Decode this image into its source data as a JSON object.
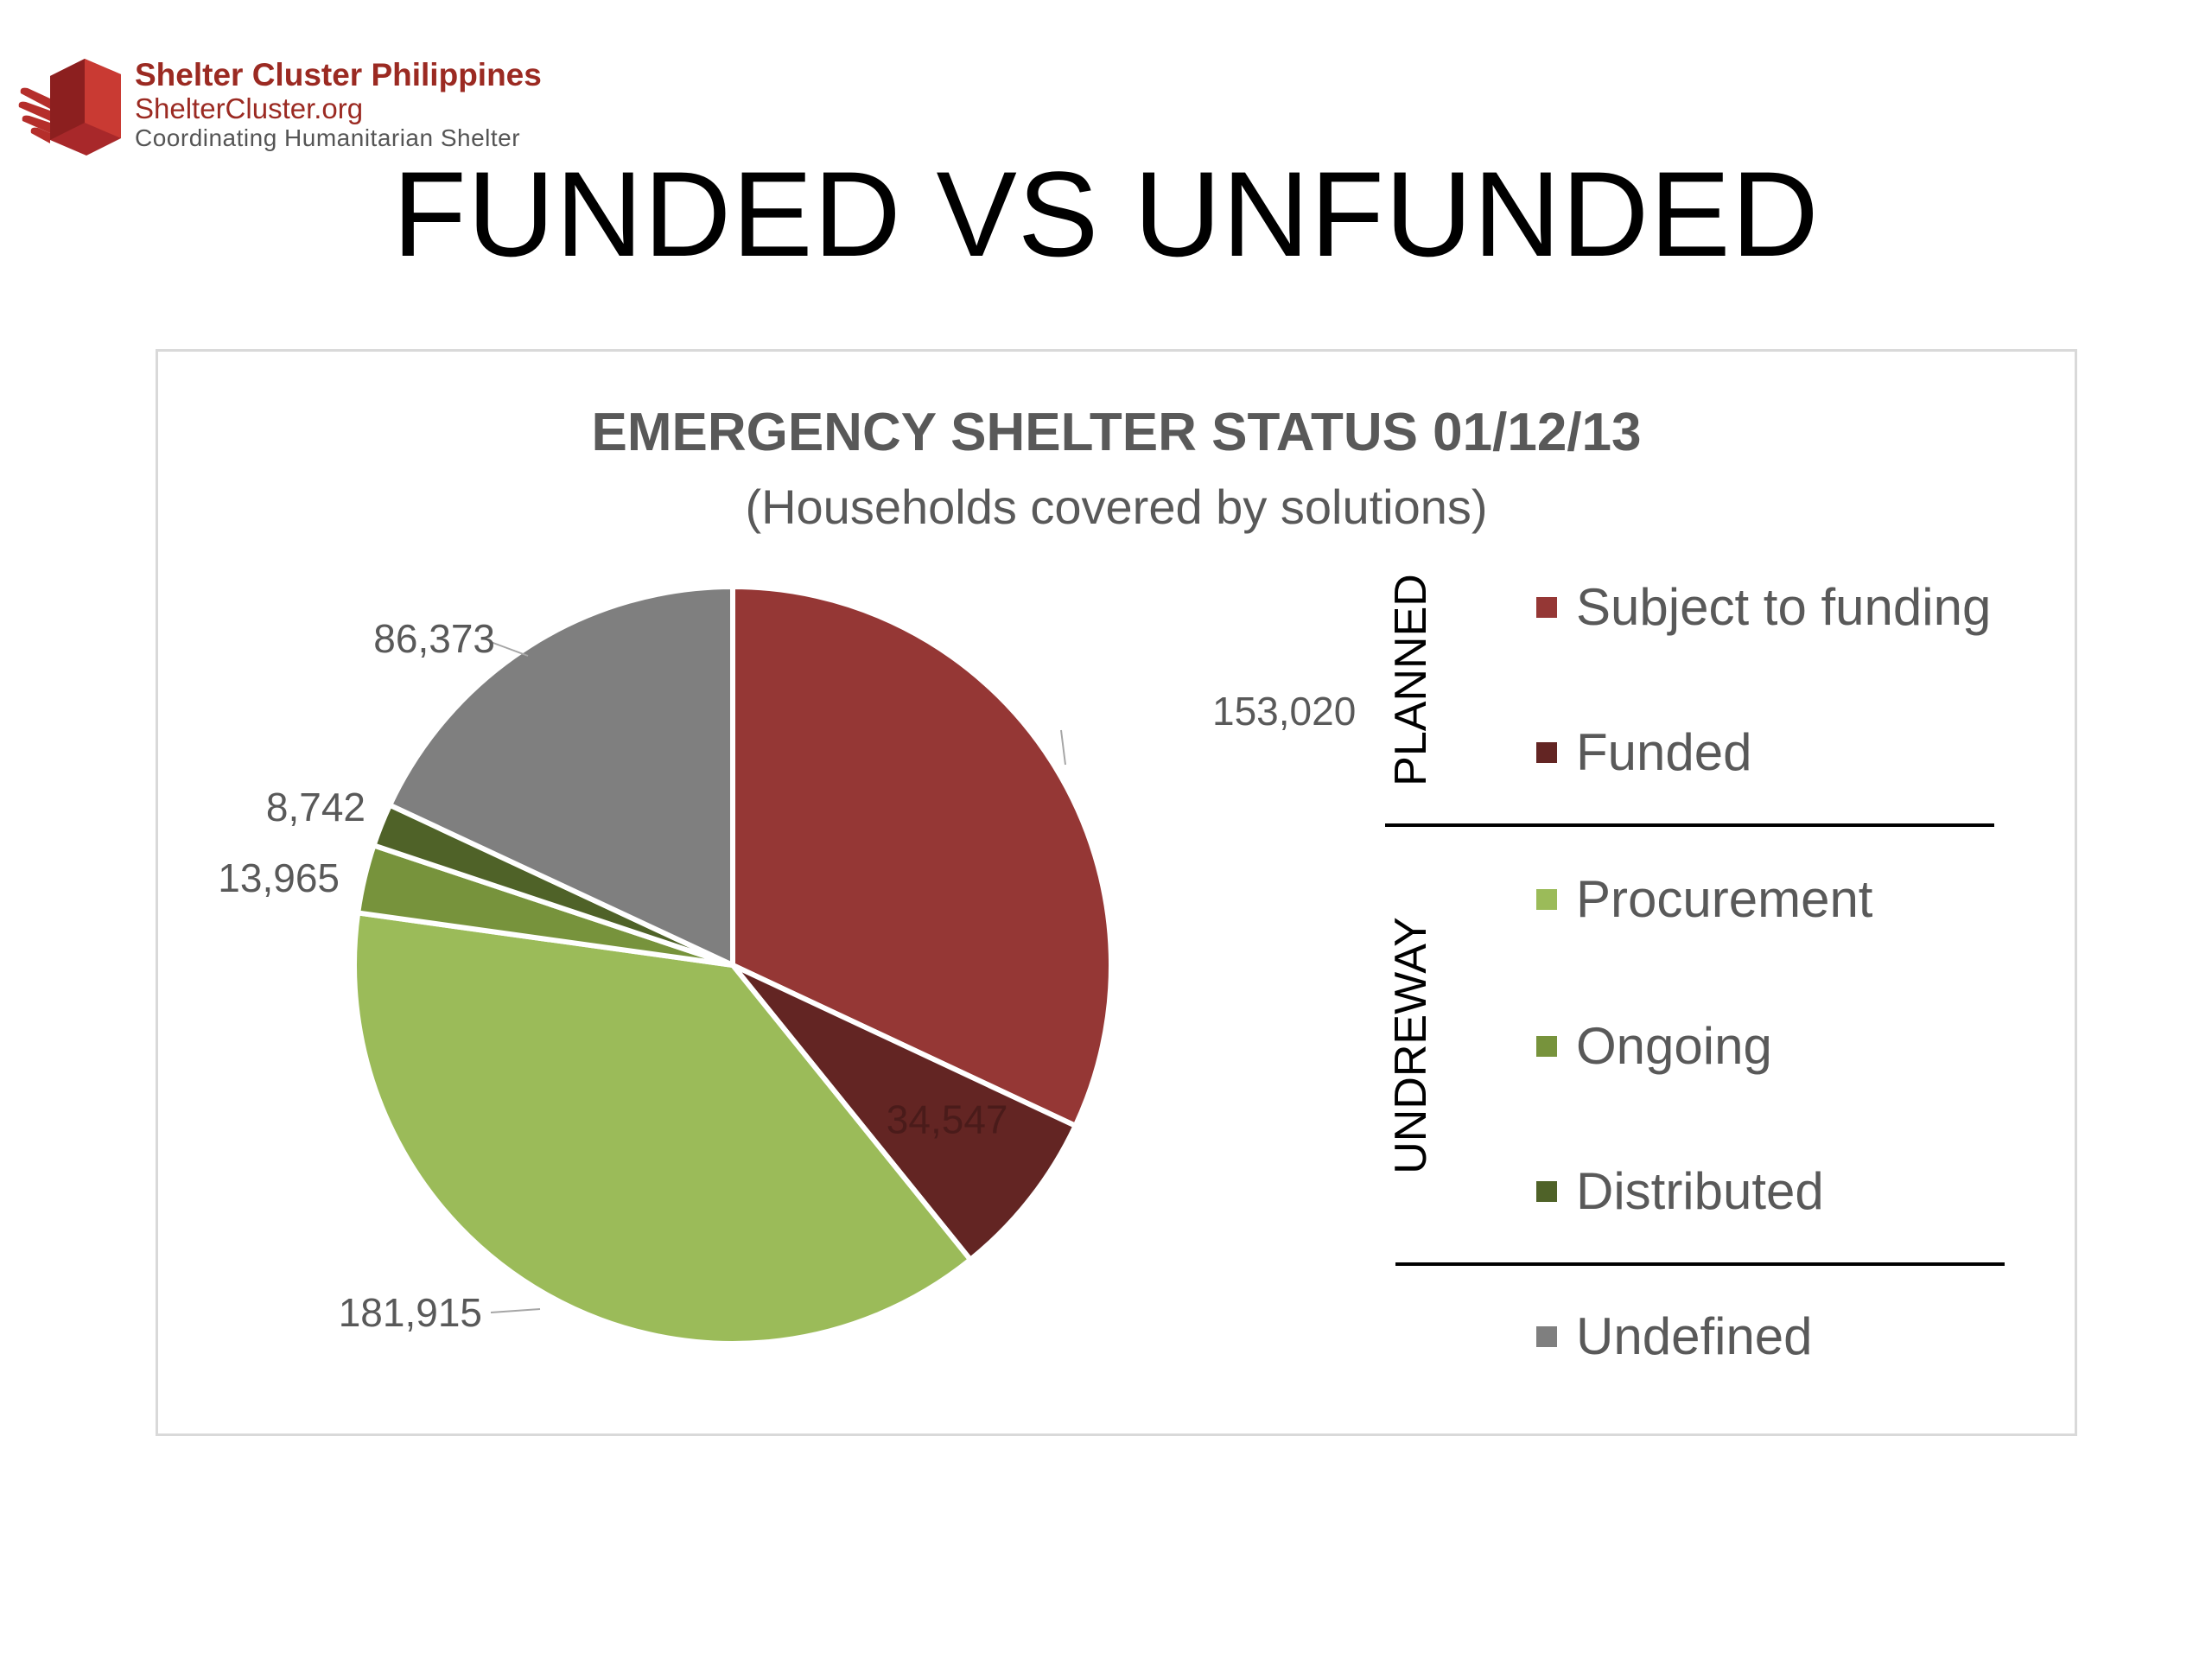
{
  "header": {
    "logo": {
      "name": "Shelter Cluster Philippines",
      "site": "ShelterCluster.org",
      "tagline": "Coordinating Humanitarian Shelter"
    },
    "slide_title": "FUNDED VS UNFUNDED"
  },
  "chart_data": {
    "type": "pie",
    "title": "EMERGENCY SHELTER STATUS 01/12/13",
    "subtitle": "(Households covered by solutions)",
    "start_angle_deg": 0,
    "direction": "clockwise",
    "slices": [
      {
        "name": "Subject to funding",
        "value": 153020,
        "label": "153,020",
        "color": "#953735"
      },
      {
        "name": "Funded",
        "value": 34547,
        "label": "34,547",
        "color": "#632523"
      },
      {
        "name": "Procurement",
        "value": 181915,
        "label": "181,915",
        "color": "#9bbb59"
      },
      {
        "name": "Ongoing",
        "value": 13965,
        "label": "13,965",
        "color": "#77933c"
      },
      {
        "name": "Distributed",
        "value": 8742,
        "label": "8,742",
        "color": "#4f6228"
      },
      {
        "name": "Undefined",
        "value": 86373,
        "label": "86,373",
        "color": "#7f7f7f"
      }
    ],
    "legend": {
      "placement": "right",
      "groups": [
        {
          "label": "PLANNED",
          "items": [
            "Subject to funding",
            "Funded"
          ]
        },
        {
          "label": "UNDREWAY",
          "items": [
            "Procurement",
            "Ongoing",
            "Distributed"
          ]
        },
        {
          "label": "",
          "items": [
            "Undefined"
          ]
        }
      ]
    }
  }
}
